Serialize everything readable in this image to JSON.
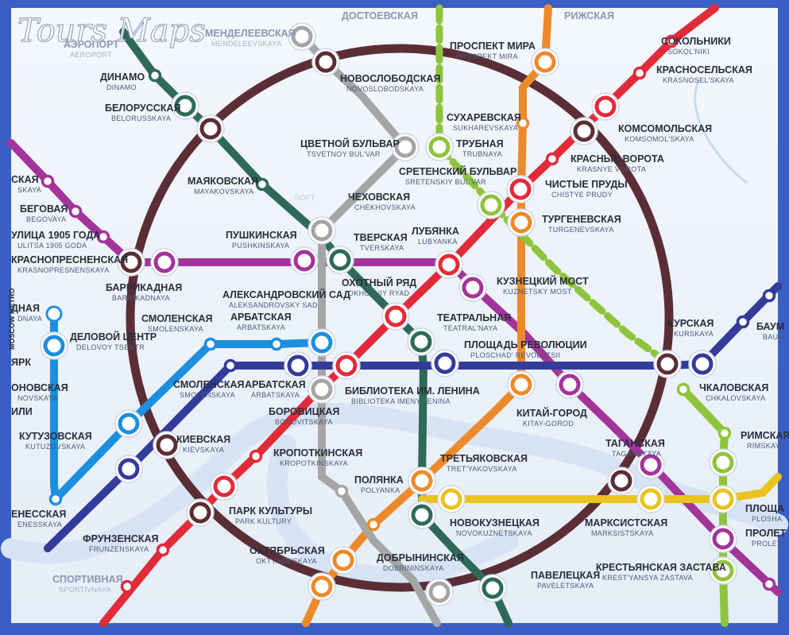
{
  "watermark": {
    "logo": "Tours Maps",
    "small": "SOFT"
  },
  "colors": {
    "ring": "#5b2e36",
    "purple": "#a2349a",
    "darkgreen": "#2e6a57",
    "red": "#e22b39",
    "orange": "#ec8a2b",
    "gray": "#a5a5a5",
    "navy": "#343b9a",
    "lightblue": "#1d8fe0",
    "lightgreen": "#8ec43d",
    "yellow": "#e8c322",
    "frame": "#3a5fc4"
  },
  "stations": [
    {
      "name": "МЕНДЕЛЕЕВСКАЯ",
      "tr": "MENDELEEVSKAYA"
    },
    {
      "name": "ДОСТОЕВСКАЯ",
      "tr": ""
    },
    {
      "name": "РИЖСКАЯ",
      "tr": ""
    },
    {
      "name": "АЭРОПОРТ",
      "tr": "AEROPORT"
    },
    {
      "name": "ДИНАМО",
      "tr": "DINAMO"
    },
    {
      "name": "БЕЛОРУССКАЯ",
      "tr": "BELORUSSKAYA"
    },
    {
      "name": "НОВОСЛОБОДСКАЯ",
      "tr": "NOVOSLOBODSKAYA"
    },
    {
      "name": "ПРОСПЕКТ МИРА",
      "tr": "PROSPEKT MIRA"
    },
    {
      "name": "СОКОЛЬНИКИ",
      "tr": "SOKOL'NIKI"
    },
    {
      "name": "КРАСНОСЕЛЬСКАЯ",
      "tr": "KRASNOSEL'SKAYA"
    },
    {
      "name": "СУХАРЕВСКАЯ",
      "tr": "SUKHAREVSKAYA"
    },
    {
      "name": "КОМСОМОЛЬСКАЯ",
      "tr": "KOMSOMOL'SKAYA"
    },
    {
      "name": "ЦВЕТНОЙ БУЛЬВАР",
      "tr": "TSVETNOY BUL'VAR"
    },
    {
      "name": "ТРУБНАЯ",
      "tr": "TRUBNAYA"
    },
    {
      "name": "КРАСНЫЕ ВОРОТА",
      "tr": "KRASNYE VOROTA"
    },
    {
      "name": "СРЕТЕНСКИЙ БУЛЬВАР",
      "tr": "SRETENSKIY BUL'VAR"
    },
    {
      "name": "ЧИСТЫЕ ПРУДЫ",
      "tr": "CHISTYE PRUDY"
    },
    {
      "name": "МАЯКОВСКАЯ",
      "tr": "MAYAKOVSKAYA"
    },
    {
      "name": "ЧЕХОВСКАЯ",
      "tr": "CHEKHOVSKAYA"
    },
    {
      "name": "ТУРГЕНЕВСКАЯ",
      "tr": "TURGENEVSKAYA"
    },
    {
      "name": "БЕГОВАЯ",
      "tr": "BEGOVAYA"
    },
    {
      "name": "УЛИЦА 1905 ГОДА",
      "tr": "ULITSA 1905 GODA"
    },
    {
      "name": "КРАСНОПРЕСНЕНСКАЯ",
      "tr": "KRASNOPRESNENSKAYA"
    },
    {
      "name": "ПУШКИНСКАЯ",
      "tr": "PUSHKINSKAYA"
    },
    {
      "name": "ТВЕРСКАЯ",
      "tr": "TVERSKAYA"
    },
    {
      "name": "ЛУБЯНКА",
      "tr": "LUBYANKA"
    },
    {
      "name": "БАРРИКАДНАЯ",
      "tr": "BARRIKADNAYA"
    },
    {
      "name": "ОХОТНЫЙ РЯД",
      "tr": "OKHOTNIY RYAD"
    },
    {
      "name": "КУЗНЕЦКИЙ МОСТ",
      "tr": "KUZNETSKY MOST"
    },
    {
      "name": "АЛЕКСАНДРОВСКИЙ САД",
      "tr": "ALEKSANDROVSKY SAD"
    },
    {
      "name": "КУРСКАЯ",
      "tr": "KURSKAYA"
    },
    {
      "name": "БАУМ",
      "tr": "BAUM"
    },
    {
      "name": "АРБАТСКАЯ",
      "tr": "ARBATSKAYA"
    },
    {
      "name": "СМОЛЕНСКАЯ",
      "tr": "SMOLENSKAYA"
    },
    {
      "name": "ТЕАТРАЛЬНАЯ",
      "tr": "TEATRAL'NAYA"
    },
    {
      "name": "ДЕЛОВОЙ ЦЕНТР",
      "tr": "DELOVOY TSENTR"
    },
    {
      "name": "ПЛОЩАДЬ РЕВОЛЮЦИИ",
      "tr": "PLOSCHAD' REVOLUTSII"
    },
    {
      "name": "СМОЛЕНСКАЯ",
      "tr": "SMOLENSKAYA"
    },
    {
      "name": "АРБАТСКАЯ",
      "tr": "ARBATSKAYA"
    },
    {
      "name": "БИБЛИОТЕКА ИМ. ЛЕНИНА",
      "tr": "BIBLIOTEKA IMENY LENINA"
    },
    {
      "name": "ЧКАЛОВСКАЯ",
      "tr": "CHKALOVSKAYA"
    },
    {
      "name": "БОРОВИЦКАЯ",
      "tr": "BOROVITSKAYA"
    },
    {
      "name": "КИТАЙ-ГОРОД",
      "tr": "KITAY-GOROD"
    },
    {
      "name": "КУТУЗОВСКАЯ",
      "tr": "KUTUZOVSKAYA"
    },
    {
      "name": "КИЕВСКАЯ",
      "tr": "KIEVSKAYA"
    },
    {
      "name": "РИМСКАЯ",
      "tr": "RIMSKAYA"
    },
    {
      "name": "ТАГАНСКАЯ",
      "tr": "TAGANSKAYA"
    },
    {
      "name": "КРОПОТКИНСКАЯ",
      "tr": "KROPOTKINSKAYA"
    },
    {
      "name": "ТРЕТЬЯКОВСКАЯ",
      "tr": "TRET'YAKOVSKAYA"
    },
    {
      "name": "ПОЛЯНКА",
      "tr": "POLYANKA"
    },
    {
      "name": "ПЛОЩА",
      "tr": "PLOSHA"
    },
    {
      "name": "ПАРК КУЛЬТУРЫ",
      "tr": "PARK KULTURY"
    },
    {
      "name": "НОВОКУЗНЕЦКАЯ",
      "tr": "NOVOKUZNETSKAYA"
    },
    {
      "name": "МАРКСИСТСКАЯ",
      "tr": "MARKSISTSKAYA"
    },
    {
      "name": "ПРОЛЕТ",
      "tr": "PROLETA"
    },
    {
      "name": "ФРУНЗЕНСКАЯ",
      "tr": "FRUNZENSKAYA"
    },
    {
      "name": "ОКТЯБРЬСКАЯ",
      "tr": "OKTYABR'SKAYA"
    },
    {
      "name": "ДОБРЫНИНСКАЯ",
      "tr": "DOBRININSKAYA"
    },
    {
      "name": "ПАВЕЛЕЦКАЯ",
      "tr": "PAVELETSKAYA"
    },
    {
      "name": "КРЕСТЬЯНСКАЯ ЗАСТАВА",
      "tr": "KREST'YANSYA ZASTAVA"
    },
    {
      "name": "СПОРТИВНАЯ",
      "tr": "SPORTIVNAYA"
    },
    {
      "name": "ЕНЕССКАЯ",
      "tr": "ENESSKAYA"
    },
    {
      "name": "СКАЯ",
      "tr": "SKAYA"
    },
    {
      "name": "ДНАЯ",
      "tr": "DNAYA"
    },
    {
      "name": "ЯРК",
      "tr": ""
    },
    {
      "name": "ОНОВСКАЯ",
      "tr": "NOVSKAYA"
    },
    {
      "name": "ИЛИ",
      "tr": ""
    }
  ],
  "vertical_text": "MOSCOW METRO"
}
